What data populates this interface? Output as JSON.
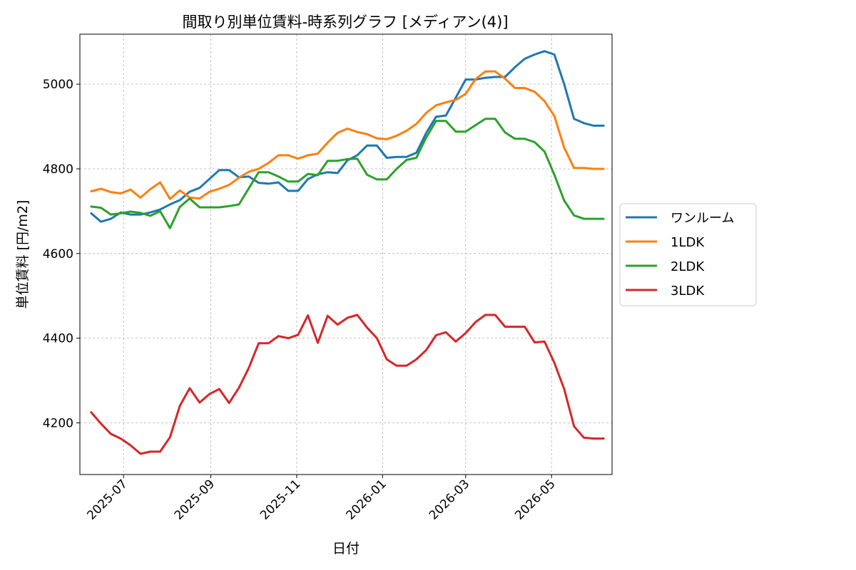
{
  "chart_data": {
    "type": "line",
    "title": "間取り別単位賃料-時系列グラフ [メディアン(4)]",
    "xlabel": "日付",
    "ylabel": "単位賃料 [円/m2]",
    "ylim": [
      4078,
      5118
    ],
    "xlim": [
      "2025-05-31",
      "2026-06-13"
    ],
    "grid": true,
    "legend_position": "outside-right",
    "y_ticks": [
      4200,
      4400,
      4600,
      4800,
      5000
    ],
    "x_ticks": [
      {
        "date": "2025-07-01",
        "label": "2025-07"
      },
      {
        "date": "2025-09-01",
        "label": "2025-09"
      },
      {
        "date": "2025-11-01",
        "label": "2025-11"
      },
      {
        "date": "2026-01-01",
        "label": "2026-01"
      },
      {
        "date": "2026-03-01",
        "label": "2026-03"
      },
      {
        "date": "2026-05-01",
        "label": "2026-05"
      }
    ],
    "x": [
      "2025-06-08",
      "2025-06-15",
      "2025-06-22",
      "2025-06-29",
      "2025-07-06",
      "2025-07-13",
      "2025-07-20",
      "2025-07-27",
      "2025-08-03",
      "2025-08-10",
      "2025-08-17",
      "2025-08-24",
      "2025-08-31",
      "2025-09-07",
      "2025-09-14",
      "2025-09-21",
      "2025-09-28",
      "2025-10-05",
      "2025-10-12",
      "2025-10-19",
      "2025-10-26",
      "2025-11-02",
      "2025-11-09",
      "2025-11-16",
      "2025-11-23",
      "2025-11-30",
      "2025-12-07",
      "2025-12-14",
      "2025-12-21",
      "2025-12-28",
      "2026-01-04",
      "2026-01-11",
      "2026-01-18",
      "2026-01-25",
      "2026-02-01",
      "2026-02-08",
      "2026-02-15",
      "2026-02-22",
      "2026-03-01",
      "2026-03-08",
      "2026-03-15",
      "2026-03-22",
      "2026-03-29",
      "2026-04-05",
      "2026-04-12",
      "2026-04-19",
      "2026-04-26",
      "2026-05-03",
      "2026-05-10",
      "2026-05-17",
      "2026-05-24",
      "2026-05-31",
      "2026-06-07"
    ],
    "series": [
      {
        "name": "ワンルーム",
        "color": "#1f77b4",
        "values": [
          4695,
          4675,
          4682,
          4697,
          4692,
          4692,
          4697,
          4704,
          4716,
          4726,
          4746,
          4755,
          4776,
          4797,
          4797,
          4780,
          4782,
          4767,
          4765,
          4768,
          4748,
          4748,
          4776,
          4787,
          4792,
          4790,
          4820,
          4832,
          4855,
          4855,
          4826,
          4828,
          4828,
          4838,
          4885,
          4923,
          4926,
          4968,
          5011,
          5011,
          5015,
          5017,
          5017,
          5040,
          5060,
          5070,
          5078,
          5070,
          5000,
          4918,
          4908,
          4902,
          4902
        ]
      },
      {
        "name": "1LDK",
        "color": "#ff7f0e",
        "values": [
          4747,
          4753,
          4745,
          4742,
          4751,
          4732,
          4752,
          4768,
          4729,
          4749,
          4732,
          4730,
          4746,
          4753,
          4762,
          4779,
          4793,
          4800,
          4814,
          4832,
          4832,
          4824,
          4832,
          4836,
          4862,
          4885,
          4895,
          4887,
          4882,
          4872,
          4870,
          4878,
          4890,
          4906,
          4932,
          4950,
          4957,
          4963,
          4977,
          5012,
          5030,
          5030,
          5013,
          4991,
          4991,
          4982,
          4960,
          4925,
          4850,
          4802,
          4802,
          4800,
          4800
        ]
      },
      {
        "name": "2LDK",
        "color": "#2ca02c",
        "values": [
          4711,
          4708,
          4692,
          4695,
          4699,
          4696,
          4689,
          4700,
          4660,
          4710,
          4730,
          4709,
          4709,
          4709,
          4712,
          4716,
          4754,
          4792,
          4792,
          4782,
          4770,
          4770,
          4788,
          4785,
          4819,
          4819,
          4823,
          4824,
          4786,
          4775,
          4775,
          4800,
          4821,
          4826,
          4874,
          4913,
          4913,
          4888,
          4888,
          4903,
          4918,
          4918,
          4886,
          4871,
          4871,
          4863,
          4841,
          4786,
          4725,
          4690,
          4682,
          4682,
          4682
        ]
      },
      {
        "name": "3LDK",
        "color": "#d62728",
        "values": [
          4225,
          4198,
          4174,
          4163,
          4147,
          4127,
          4132,
          4132,
          4166,
          4240,
          4282,
          4248,
          4268,
          4280,
          4247,
          4283,
          4330,
          4388,
          4388,
          4405,
          4400,
          4408,
          4454,
          4389,
          4453,
          4432,
          4448,
          4455,
          4425,
          4400,
          4350,
          4335,
          4335,
          4350,
          4372,
          4407,
          4414,
          4392,
          4412,
          4438,
          4455,
          4455,
          4427,
          4427,
          4427,
          4390,
          4392,
          4342,
          4280,
          4192,
          4165,
          4163,
          4163
        ]
      }
    ]
  }
}
